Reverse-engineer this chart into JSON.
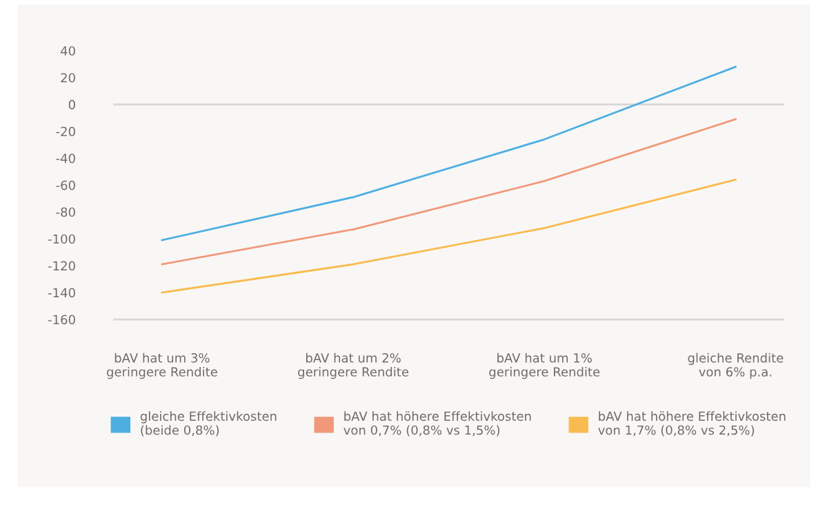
{
  "chart_data": {
    "type": "line",
    "categories": [
      "bAV hat um 3%\ngeringere Rendite",
      "bAV hat um 2%\ngeringere Rendite",
      "bAV hat um 1%\ngeringere Rendite",
      "gleiche Rendite\nvon 6% p.a."
    ],
    "series": [
      {
        "name": "gleiche Effektivkosten\n(beide 0,8%)",
        "color": "#4daee2",
        "values": [
          -101,
          -69,
          -26,
          28
        ]
      },
      {
        "name": "bAV hat höhere Effektivkosten\nvon 0,7% (0,8% vs 1,5%)",
        "color": "#f1987a",
        "values": [
          -119,
          -93,
          -57,
          -11
        ]
      },
      {
        "name": "bAV hat höhere Effektivkosten\nvon 1,7% (0,8% vs 2,5%)",
        "color": "#f9bb4f",
        "values": [
          -140,
          -119,
          -92,
          -56
        ]
      }
    ],
    "ylim": [
      -160,
      40
    ],
    "yticks": [
      -160,
      -140,
      -120,
      -100,
      -80,
      -60,
      -40,
      -20,
      0,
      20,
      40
    ],
    "ref_lines": [
      {
        "axis": "y",
        "value": 0,
        "color": "#d9d7d4"
      }
    ],
    "grid": false,
    "legend": "bottom",
    "marker": "none",
    "line_style": "solid"
  }
}
